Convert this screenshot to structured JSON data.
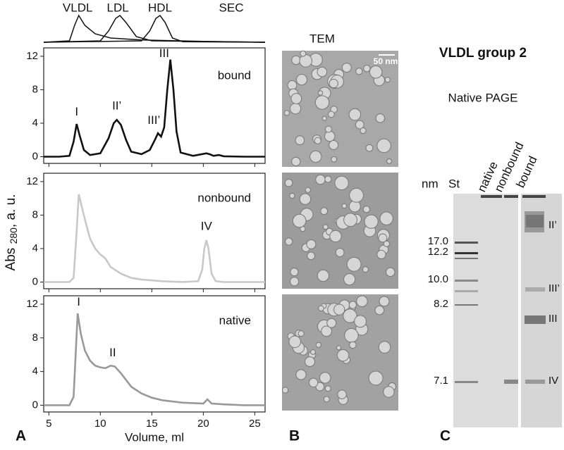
{
  "chart_data": [
    {
      "type": "line",
      "title": "SEC",
      "annotations": [
        "VLDL",
        "LDL",
        "HDL"
      ],
      "xlim": [
        4.5,
        26
      ],
      "series": [
        {
          "color": "#111",
          "x": [
            4.5,
            7,
            7.5,
            7.9,
            8.5,
            9.5,
            11,
            14,
            20,
            26
          ],
          "values": [
            0,
            0.05,
            0.6,
            0.95,
            0.6,
            0.3,
            0.15,
            0.08,
            0.03,
            0
          ]
        },
        {
          "color": "#111",
          "x": [
            4.5,
            10,
            10.8,
            11.5,
            11.9,
            12.5,
            13.5,
            15,
            26
          ],
          "values": [
            0,
            0.05,
            0.4,
            0.85,
            0.95,
            0.7,
            0.2,
            0.05,
            0
          ]
        },
        {
          "color": "#111",
          "x": [
            4.5,
            14,
            14.8,
            15.4,
            15.8,
            16.3,
            17,
            18,
            26
          ],
          "values": [
            0,
            0.05,
            0.4,
            0.85,
            0.95,
            0.7,
            0.15,
            0.02,
            0
          ]
        }
      ]
    },
    {
      "type": "line",
      "title": "bound",
      "annotations": [
        "I",
        "II’",
        "III’",
        "III"
      ],
      "color": "#111",
      "x": [
        4.5,
        6,
        7,
        7.4,
        7.7,
        8,
        8.4,
        9,
        10,
        10.8,
        11.3,
        11.6,
        12,
        12.5,
        13,
        14,
        14.8,
        15.3,
        15.6,
        15.9,
        16.2,
        16.5,
        16.8,
        17.1,
        17.4,
        17.8,
        19,
        20.3,
        20.6,
        21,
        21.5,
        22,
        24,
        26
      ],
      "values": [
        0,
        0,
        0.1,
        1.8,
        3.9,
        2.5,
        0.8,
        0.2,
        0.4,
        2.2,
        4.0,
        4.4,
        3.8,
        2,
        0.6,
        0.3,
        0.8,
        2,
        2.8,
        2.4,
        3.5,
        8,
        11.6,
        8,
        3,
        0.5,
        0.1,
        0.4,
        0.3,
        0.1,
        0.2,
        0.05,
        0,
        0
      ],
      "xlim": [
        4.5,
        26
      ],
      "xticks": [
        5,
        10,
        15,
        20,
        25
      ],
      "ylim": [
        -0.8,
        13
      ],
      "yticks": [
        0,
        4,
        8,
        12
      ]
    },
    {
      "type": "line",
      "title": "nonbound",
      "annotations": [
        "IV"
      ],
      "color": "#c8c8c8",
      "x": [
        4.5,
        6,
        7,
        7.4,
        7.7,
        7.9,
        8.2,
        8.6,
        9,
        9.5,
        10,
        10.5,
        11,
        11.5,
        12,
        13,
        14,
        16,
        18,
        19.5,
        19.9,
        20.1,
        20.3,
        20.5,
        20.8,
        21.2,
        22,
        26
      ],
      "values": [
        0,
        0,
        0,
        0.5,
        6,
        10.5,
        9,
        7,
        5.2,
        4,
        3.3,
        2.8,
        1.8,
        1.4,
        1,
        0.5,
        0.3,
        0.1,
        0,
        0.1,
        1.5,
        4,
        5,
        4,
        1,
        0.1,
        0,
        0
      ],
      "xlim": [
        4.5,
        26
      ],
      "xticks": [
        5,
        10,
        15,
        20,
        25
      ],
      "ylim": [
        -0.8,
        13
      ],
      "yticks": [
        0,
        4,
        8,
        12
      ]
    },
    {
      "type": "line",
      "title": "native",
      "annotations": [
        "I",
        "II"
      ],
      "color": "#999",
      "x": [
        4.5,
        6,
        7,
        7.4,
        7.6,
        7.8,
        8.1,
        8.5,
        9,
        9.5,
        10,
        10.5,
        11,
        11.4,
        12,
        13,
        14,
        15,
        16,
        18,
        20,
        20.4,
        20.8,
        22,
        24,
        26
      ],
      "values": [
        0,
        0,
        0,
        1,
        6,
        10.9,
        8.5,
        6.5,
        5.3,
        4.7,
        4.5,
        4.4,
        4.7,
        4.6,
        3.8,
        2.2,
        1.4,
        0.9,
        0.6,
        0.3,
        0.2,
        0.7,
        0.2,
        0.1,
        0,
        0
      ],
      "xlim": [
        4.5,
        26
      ],
      "xticks": [
        5,
        10,
        15,
        20,
        25
      ],
      "ylim": [
        -0.8,
        13
      ],
      "yticks": [
        0,
        4,
        8,
        12
      ]
    }
  ],
  "figure": {
    "panel_labels": [
      "A",
      "B",
      "C"
    ],
    "x_axis_label": "Volume, ml",
    "y_axis_label": {
      "main": "Abs ",
      "subscript": "280",
      "rest": ", a. u."
    }
  },
  "tem": {
    "title": "TEM",
    "scale_bar": "50 nm"
  },
  "gel": {
    "title": "VLDL group 2",
    "subtitle": "Native PAGE",
    "size_unit": "nm",
    "lanes": [
      "St",
      "native",
      "nonbound",
      "bound"
    ],
    "standard_sizes": [
      "17.0",
      "12.2",
      "10.0",
      "8.2",
      "7.1"
    ],
    "band_labels": [
      "II’",
      "III’",
      "III",
      "IV"
    ]
  }
}
